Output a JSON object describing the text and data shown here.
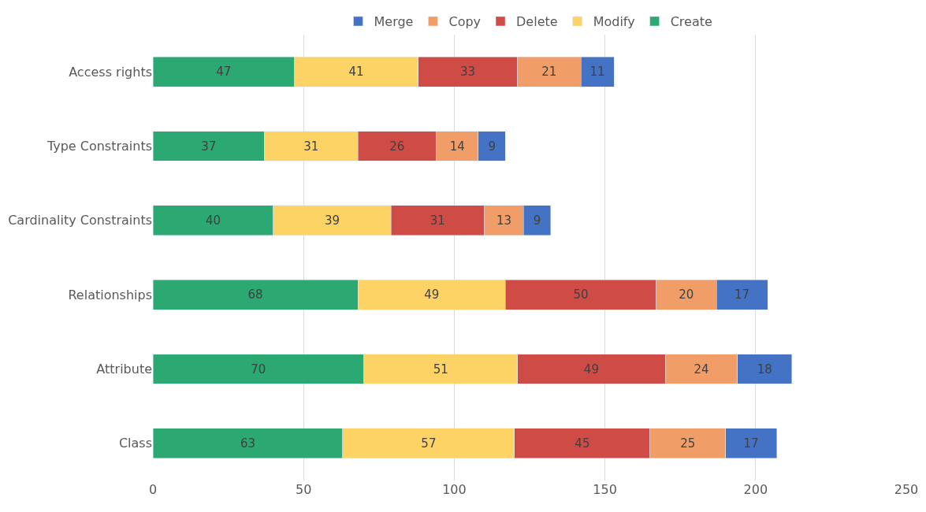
{
  "chart_data": {
    "type": "bar",
    "orientation": "horizontal",
    "stacked": true,
    "data_labels": true,
    "grid": "x",
    "legend": "top",
    "categories": [
      "Access rights",
      "Type Constraints",
      "Cardinality Constraints",
      "Relationships",
      "Attribute",
      "Class"
    ],
    "xlim": [
      0,
      250
    ],
    "xticks": [
      0,
      50,
      100,
      150,
      200,
      250
    ],
    "series": [
      {
        "name": "Create",
        "color": "#2ca873",
        "values": [
          47,
          37,
          40,
          68,
          70,
          63
        ]
      },
      {
        "name": "Modify",
        "color": "#fdd366",
        "values": [
          41,
          31,
          39,
          49,
          51,
          57
        ]
      },
      {
        "name": "Delete",
        "color": "#cf4b45",
        "values": [
          33,
          26,
          31,
          50,
          49,
          45
        ]
      },
      {
        "name": "Copy",
        "color": "#f19d68",
        "values": [
          21,
          14,
          13,
          20,
          24,
          25
        ]
      },
      {
        "name": "Merge",
        "color": "#4472c4",
        "values": [
          11,
          9,
          9,
          17,
          18,
          17
        ]
      }
    ]
  }
}
